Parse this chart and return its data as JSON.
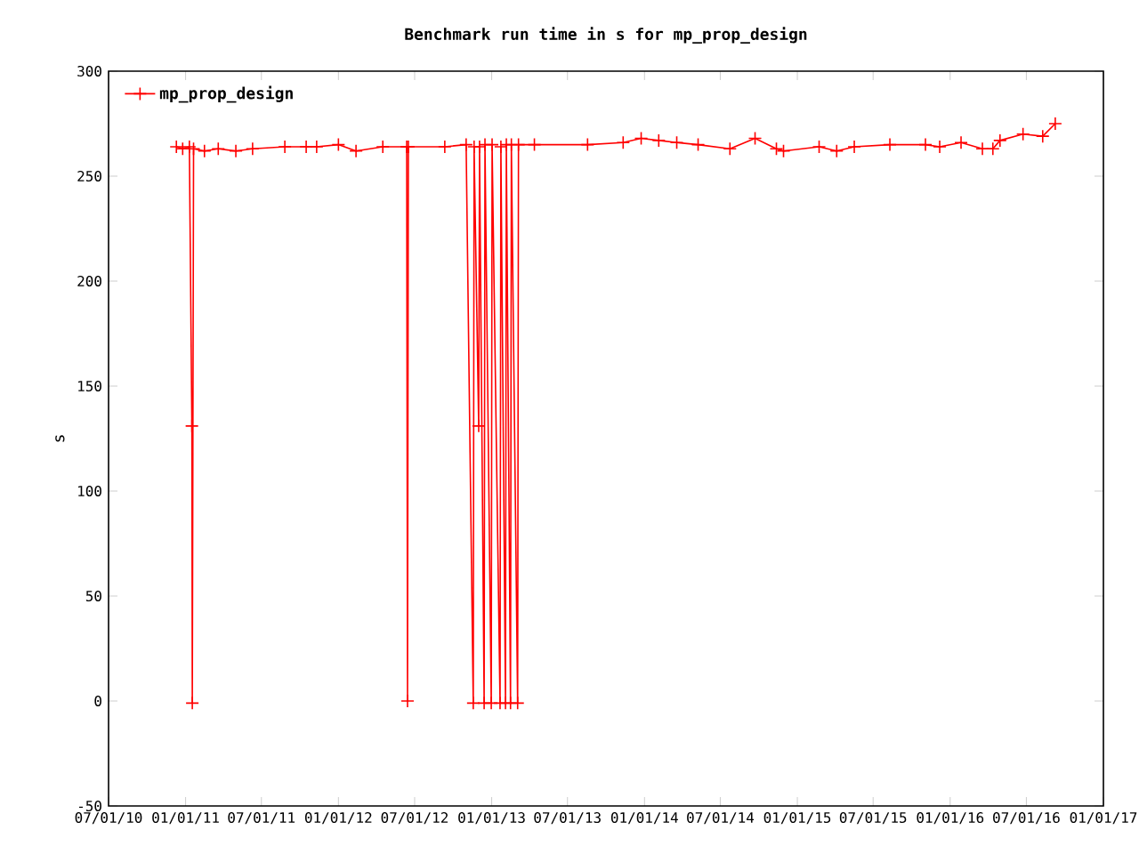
{
  "chart_data": {
    "type": "line",
    "title": "Benchmark run time in s for mp_prop_design",
    "ylabel": "s",
    "xlim": [
      "2010-07-01",
      "2017-01-01"
    ],
    "xticks": [
      {
        "value": "2010-07-01",
        "label": "07/01/10"
      },
      {
        "value": "2011-01-01",
        "label": "01/01/11"
      },
      {
        "value": "2011-07-01",
        "label": "07/01/11"
      },
      {
        "value": "2012-01-01",
        "label": "01/01/12"
      },
      {
        "value": "2012-07-01",
        "label": "07/01/12"
      },
      {
        "value": "2013-01-01",
        "label": "01/01/13"
      },
      {
        "value": "2013-07-01",
        "label": "07/01/13"
      },
      {
        "value": "2014-01-01",
        "label": "01/01/14"
      },
      {
        "value": "2014-07-01",
        "label": "07/01/14"
      },
      {
        "value": "2015-01-01",
        "label": "01/01/15"
      },
      {
        "value": "2015-07-01",
        "label": "07/01/15"
      },
      {
        "value": "2016-01-01",
        "label": "01/01/16"
      },
      {
        "value": "2016-07-01",
        "label": "07/01/16"
      },
      {
        "value": "2017-01-01",
        "label": "01/01/17"
      }
    ],
    "ylim": [
      -50,
      300
    ],
    "yticks": [
      -50,
      0,
      50,
      100,
      150,
      200,
      250,
      300
    ],
    "legend": "top left",
    "marker": "cross",
    "line_style": "solid",
    "series": [
      {
        "name": "mp_prop_design",
        "color": "#ff0000",
        "x": [
          "2010-12-10",
          "2010-12-25",
          "2011-01-10",
          "2011-01-16",
          "2011-01-17",
          "2011-01-20",
          "2011-02-15",
          "2011-03-20",
          "2011-05-01",
          "2011-06-10",
          "2011-08-26",
          "2011-10-16",
          "2011-11-10",
          "2012-01-01",
          "2012-02-12",
          "2012-04-16",
          "2012-06-12",
          "2012-06-14",
          "2012-06-16",
          "2012-09-11",
          "2012-11-01",
          "2012-11-18",
          "2012-11-20",
          "2012-12-01",
          "2012-12-03",
          "2012-12-14",
          "2012-12-16",
          "2012-12-31",
          "2013-01-02",
          "2013-01-21",
          "2013-01-23",
          "2013-02-03",
          "2013-02-05",
          "2013-02-15",
          "2013-02-17",
          "2013-03-04",
          "2013-03-06",
          "2013-04-13",
          "2013-08-18",
          "2013-11-11",
          "2013-12-24",
          "2014-02-04",
          "2014-03-19",
          "2014-05-09",
          "2014-07-24",
          "2014-09-22",
          "2014-11-12",
          "2014-11-29",
          "2015-02-22",
          "2015-04-05",
          "2015-05-17",
          "2015-08-10",
          "2015-11-03",
          "2015-12-07",
          "2016-01-27",
          "2016-03-18",
          "2016-04-12",
          "2016-04-29",
          "2016-06-23",
          "2016-08-09",
          "2016-09-08"
        ],
        "values": [
          264,
          263,
          264,
          131,
          -1,
          263,
          262,
          263,
          262,
          263,
          264,
          264,
          264,
          265,
          262,
          264,
          264,
          0,
          264,
          264,
          265,
          -1,
          264,
          131,
          264,
          -1,
          265,
          -1,
          265,
          -1,
          264,
          -1,
          265,
          -1,
          265,
          -1,
          265,
          265,
          265,
          266,
          268,
          267,
          266,
          265,
          263,
          268,
          263,
          262,
          264,
          262,
          264,
          265,
          265,
          264,
          266,
          263,
          263,
          267,
          270,
          269,
          275
        ]
      }
    ]
  }
}
